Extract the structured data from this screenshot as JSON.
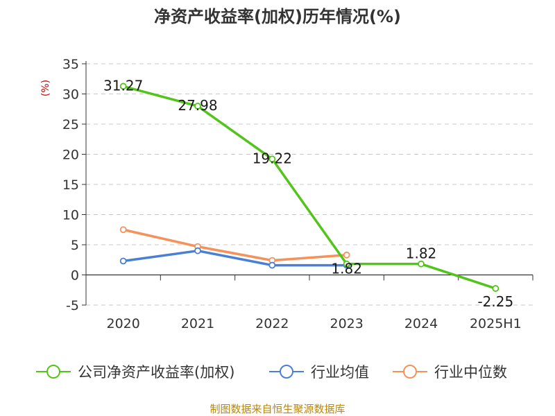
{
  "chart_data": {
    "type": "line",
    "title": "净资产收益率(加权)历年情况(%)",
    "ylabel": "(%)",
    "xlabel": "",
    "categories": [
      "2020",
      "2021",
      "2022",
      "2023",
      "2024",
      "2025H1"
    ],
    "ylim": [
      -5,
      35
    ],
    "yticks": [
      "35",
      "30",
      "25",
      "20",
      "15",
      "10",
      "5",
      "0",
      "-5"
    ],
    "grid": true,
    "legend_position": "bottom",
    "series": [
      {
        "name": "公司净资产收益率(加权)",
        "color": "#52c41a",
        "values": [
          31.27,
          27.98,
          19.22,
          1.82,
          1.82,
          -2.25
        ],
        "labels": [
          "31.27",
          "27.98",
          "19.22",
          "1.82",
          "1.82",
          "-2.25"
        ]
      },
      {
        "name": "行业均值",
        "color": "#4a7fd6",
        "values": [
          2.3,
          4.0,
          1.6,
          1.6,
          null,
          null
        ]
      },
      {
        "name": "行业中位数",
        "color": "#f4925a",
        "values": [
          7.5,
          4.7,
          2.4,
          3.3,
          null,
          null
        ]
      }
    ]
  },
  "source": "制图数据来自恒生聚源数据库"
}
